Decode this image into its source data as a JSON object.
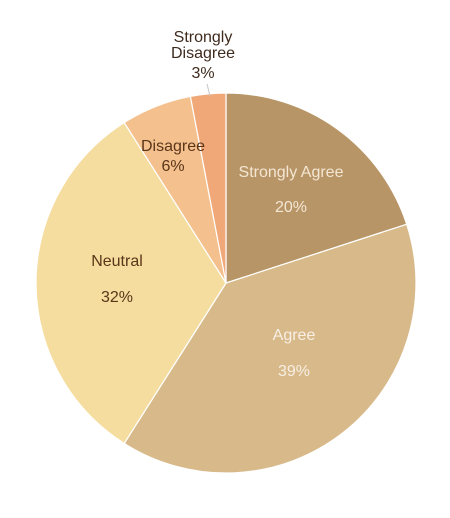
{
  "chart_data": {
    "type": "pie",
    "title": "",
    "slices": [
      {
        "label_lines": [
          "Strongly Agree"
        ],
        "percent_text": "20%",
        "value": 20,
        "color": "#b89566",
        "text_color": "#f3e7d4"
      },
      {
        "label_lines": [
          "Agree"
        ],
        "percent_text": "39%",
        "value": 39,
        "color": "#d8b98a",
        "text_color": "#f7efe4"
      },
      {
        "label_lines": [
          "Neutral"
        ],
        "percent_text": "32%",
        "value": 32,
        "color": "#f5dda0",
        "text_color": "#5a3619"
      },
      {
        "label_lines": [
          "Disagree"
        ],
        "percent_text": "6%",
        "value": 6,
        "color": "#f4c08d",
        "text_color": "#5a3619"
      },
      {
        "label_lines": [
          "Strongly",
          "Disagree"
        ],
        "percent_text": "3%",
        "value": 3,
        "color": "#f0a878",
        "text_color": "#3f2b1d"
      }
    ]
  }
}
